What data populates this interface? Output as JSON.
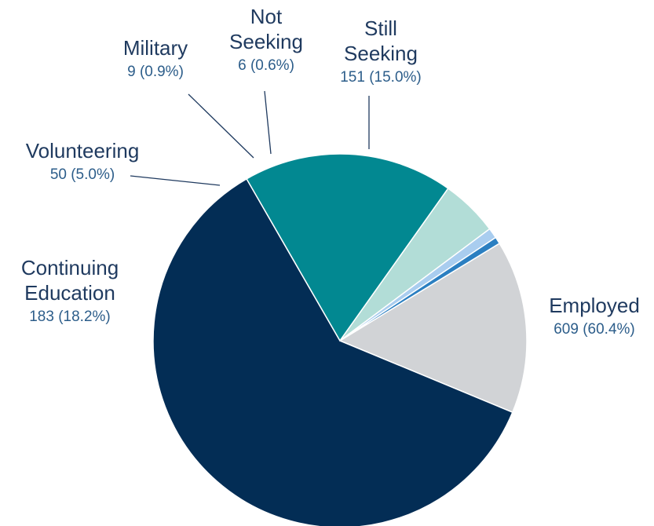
{
  "chart_data": {
    "type": "pie",
    "title": "",
    "slices": [
      {
        "name": "Still Seeking",
        "lines": [
          "Still",
          "Seeking"
        ],
        "value": 151,
        "percent_label": "151 (15.0%)",
        "color": "#d1d3d6"
      },
      {
        "name": "Employed",
        "lines": [
          "Employed"
        ],
        "value": 609,
        "percent_label": "609 (60.4%)",
        "color": "#032d55"
      },
      {
        "name": "Continuing Education",
        "lines": [
          "Continuing",
          "Education"
        ],
        "value": 183,
        "percent_label": "183 (18.2%)",
        "color": "#028891"
      },
      {
        "name": "Volunteering",
        "lines": [
          "Volunteering"
        ],
        "value": 50,
        "percent_label": "50 (5.0%)",
        "color": "#b2ddd7"
      },
      {
        "name": "Military",
        "lines": [
          "Military"
        ],
        "value": 9,
        "percent_label": "9 (0.9%)",
        "color": "#a9cdef"
      },
      {
        "name": "Not Seeking",
        "lines": [
          "Not",
          "Seeking"
        ],
        "value": 6,
        "percent_label": "6 (0.6%)",
        "color": "#2b7fc1"
      }
    ]
  }
}
